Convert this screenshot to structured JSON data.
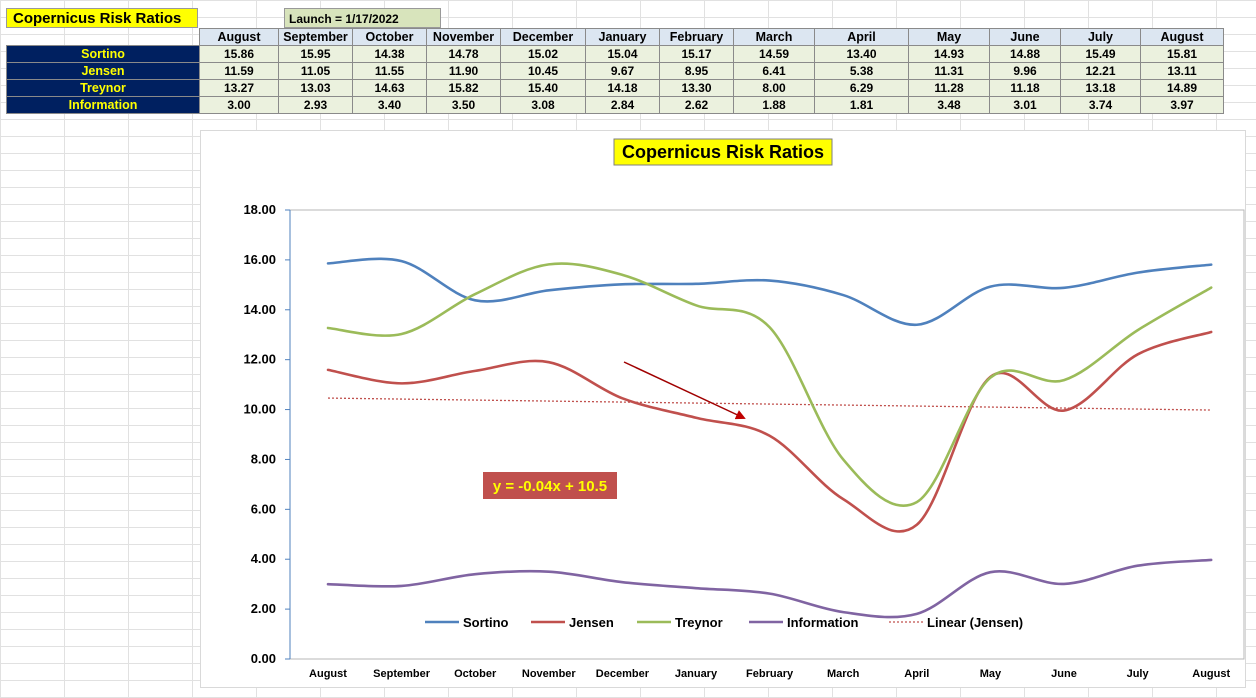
{
  "sheet": {
    "title": "Copernicus Risk Ratios",
    "launch": "Launch = 1/17/2022",
    "months": [
      "August",
      "September",
      "October",
      "November",
      "December",
      "January",
      "February",
      "March",
      "April",
      "May",
      "June",
      "July",
      "August"
    ],
    "rows": [
      {
        "label": "Sortino",
        "values": [
          "15.86",
          "15.95",
          "14.38",
          "14.78",
          "15.02",
          "15.04",
          "15.17",
          "14.59",
          "13.40",
          "14.93",
          "14.88",
          "15.49",
          "15.81"
        ]
      },
      {
        "label": "Jensen",
        "values": [
          "11.59",
          "11.05",
          "11.55",
          "11.90",
          "10.45",
          "9.67",
          "8.95",
          "6.41",
          "5.38",
          "11.31",
          "9.96",
          "12.21",
          "13.11"
        ]
      },
      {
        "label": "Treynor",
        "values": [
          "13.27",
          "13.03",
          "14.63",
          "15.82",
          "15.40",
          "14.18",
          "13.30",
          "8.00",
          "6.29",
          "11.28",
          "11.18",
          "13.18",
          "14.89"
        ]
      },
      {
        "label": "Information",
        "values": [
          "3.00",
          "2.93",
          "3.40",
          "3.50",
          "3.08",
          "2.84",
          "2.62",
          "1.88",
          "1.81",
          "3.48",
          "3.01",
          "3.74",
          "3.97"
        ]
      }
    ]
  },
  "chart_data": {
    "type": "line",
    "title": "Copernicus Risk Ratios",
    "categories": [
      "August",
      "September",
      "October",
      "November",
      "December",
      "January",
      "February",
      "March",
      "April",
      "May",
      "June",
      "July",
      "August"
    ],
    "series": [
      {
        "name": "Sortino",
        "color": "#4f81bd",
        "values": [
          15.86,
          15.95,
          14.38,
          14.78,
          15.02,
          15.04,
          15.17,
          14.59,
          13.4,
          14.93,
          14.88,
          15.49,
          15.81
        ]
      },
      {
        "name": "Jensen",
        "color": "#c0504d",
        "values": [
          11.59,
          11.05,
          11.55,
          11.9,
          10.45,
          9.67,
          8.95,
          6.41,
          5.38,
          11.31,
          9.96,
          12.21,
          13.11
        ]
      },
      {
        "name": "Treynor",
        "color": "#9bbb59",
        "values": [
          13.27,
          13.03,
          14.63,
          15.82,
          15.4,
          14.18,
          13.3,
          8.0,
          6.29,
          11.28,
          11.18,
          13.18,
          14.89
        ]
      },
      {
        "name": "Information",
        "color": "#8064a2",
        "values": [
          3.0,
          2.93,
          3.4,
          3.5,
          3.08,
          2.84,
          2.62,
          1.88,
          1.81,
          3.48,
          3.01,
          3.74,
          3.97
        ]
      }
    ],
    "trendline": {
      "name": "Linear (Jensen)",
      "color": "#c0504d",
      "slope": -0.04,
      "intercept": 10.5,
      "equation": "y = -0.04x + 10.5"
    },
    "ylim": [
      0,
      18
    ],
    "yticks": [
      "0.00",
      "2.00",
      "4.00",
      "6.00",
      "8.00",
      "10.00",
      "12.00",
      "14.00",
      "16.00",
      "18.00"
    ],
    "legend_position": "bottom-inside",
    "grid": false
  }
}
